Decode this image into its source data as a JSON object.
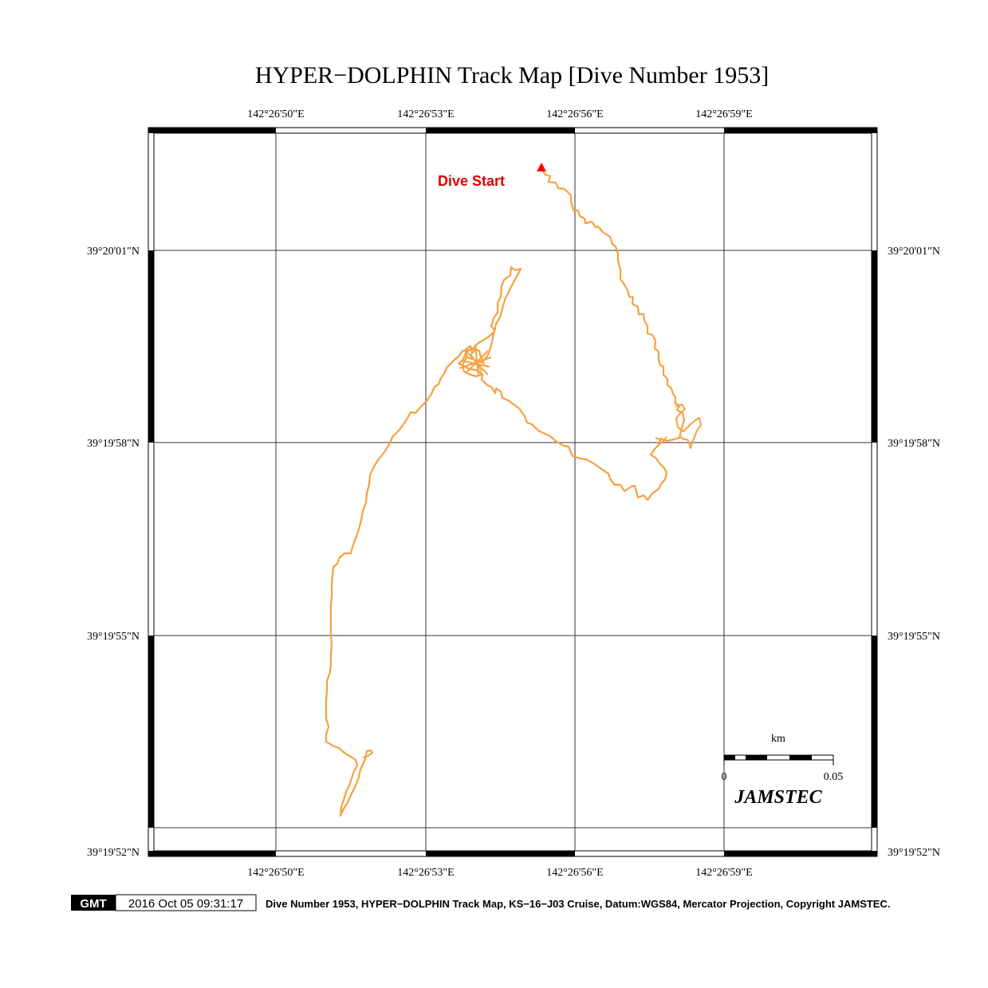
{
  "title": "HYPER−DOLPHIN Track Map [Dive Number 1953]",
  "lon_labels": [
    "142°26'50\"E",
    "142°26'53\"E",
    "142°26'56\"E",
    "142°26'59\"E"
  ],
  "lat_labels": [
    "39°20'01\"N",
    "39°19'58\"N",
    "39°19'55\"N",
    "39°19'52\"N"
  ],
  "annotations": {
    "dive_start": "Dive Start"
  },
  "scale_bar": {
    "unit": "km",
    "start": "0",
    "end": "0.05"
  },
  "logo_text": "JAMSTEC",
  "footer": {
    "gmt_logo": "GMT",
    "timestamp": "2016 Oct 05 09:31:17",
    "caption": "Dive Number 1953, HYPER−DOLPHIN Track Map, KS−16−J03 Cruise, Datum:WGS84, Mercator Projection, Copyright JAMSTEC."
  },
  "colors": {
    "track": "#f7a040",
    "start_marker": "#ff0000",
    "grid": "#333333",
    "frame": "#000000"
  }
}
